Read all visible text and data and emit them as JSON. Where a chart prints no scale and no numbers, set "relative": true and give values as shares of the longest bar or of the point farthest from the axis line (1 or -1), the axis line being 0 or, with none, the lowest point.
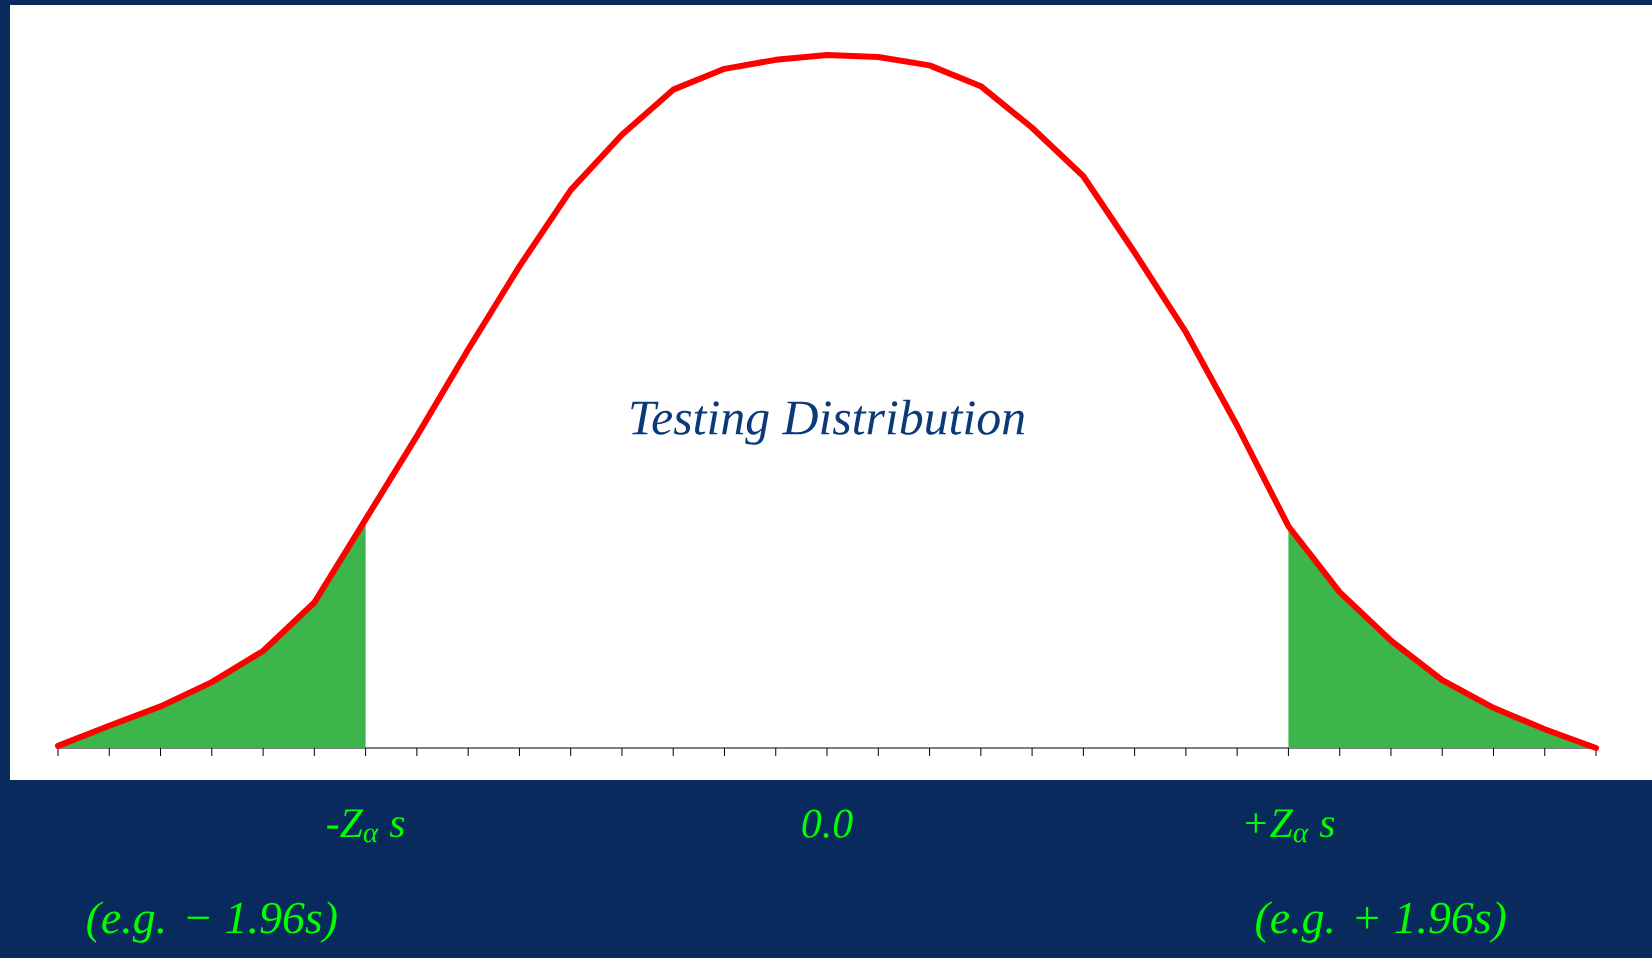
{
  "chart_data": {
    "type": "line",
    "title": "Testing Distribution",
    "relative": true,
    "categories": [
      null,
      null,
      null,
      null,
      null,
      null,
      "-Z$_{α}$ s",
      null,
      null,
      null,
      null,
      null,
      null,
      null,
      null,
      "0.0",
      null,
      null,
      null,
      null,
      null,
      null,
      null,
      null,
      "+Z$_{α}$ s",
      null,
      null,
      null,
      null,
      null,
      null
    ],
    "annotations": [
      "(e.g. − 1.96s)",
      "(e.g. + 1.96s)"
    ],
    "series": [
      {
        "type": "area",
        "color": "#3cb54a",
        "values": [
          0.003,
          0.032,
          0.06,
          0.095,
          0.14,
          0.21,
          0.33,
          null,
          null,
          null,
          null,
          null,
          null,
          null,
          null,
          null,
          null,
          null,
          null,
          null,
          null,
          null,
          null,
          null,
          null,
          null,
          null,
          null,
          null,
          null,
          null
        ]
      },
      {
        "type": "area",
        "color": "#3cb54a",
        "values": [
          null,
          null,
          null,
          null,
          null,
          null,
          null,
          null,
          null,
          null,
          null,
          null,
          null,
          null,
          null,
          null,
          null,
          null,
          null,
          null,
          null,
          null,
          null,
          null,
          0.32,
          0.225,
          0.155,
          0.098,
          0.058,
          0.027,
          0.0
        ]
      },
      {
        "color": "#ff0000",
        "values": [
          0.003,
          0.032,
          0.06,
          0.095,
          0.14,
          0.21,
          0.33,
          0.45,
          0.575,
          0.695,
          0.805,
          0.885,
          0.95,
          0.98,
          0.993,
          1.0,
          0.997,
          0.985,
          0.955,
          0.895,
          0.825,
          0.715,
          0.6,
          0.465,
          0.32,
          0.225,
          0.155,
          0.098,
          0.058,
          0.027,
          0.0
        ]
      }
    ]
  }
}
